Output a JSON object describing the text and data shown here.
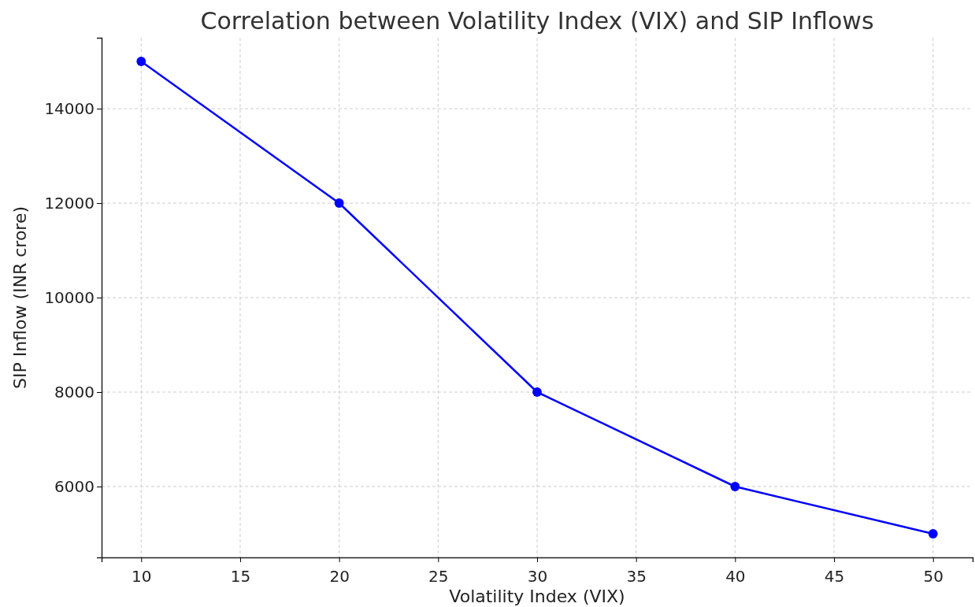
{
  "chart_data": {
    "type": "line",
    "title": "Correlation between Volatility Index (VIX) and SIP Inflows",
    "xlabel": "Volatility Index (VIX)",
    "ylabel": "SIP Inflow (INR crore)",
    "x": [
      10,
      20,
      30,
      40,
      50
    ],
    "series": [
      {
        "color": "#0000ff",
        "values": [
          15000,
          12000,
          8000,
          6000,
          5000
        ]
      }
    ],
    "xlim": [
      8,
      52
    ],
    "xticks": [
      10,
      15,
      20,
      25,
      30,
      35,
      40,
      45,
      50
    ],
    "ylim": [
      4500,
      15500
    ],
    "yticks": [
      6000,
      8000,
      10000,
      12000,
      14000
    ],
    "grid": true,
    "marker": "circle",
    "line_style": "solid"
  }
}
